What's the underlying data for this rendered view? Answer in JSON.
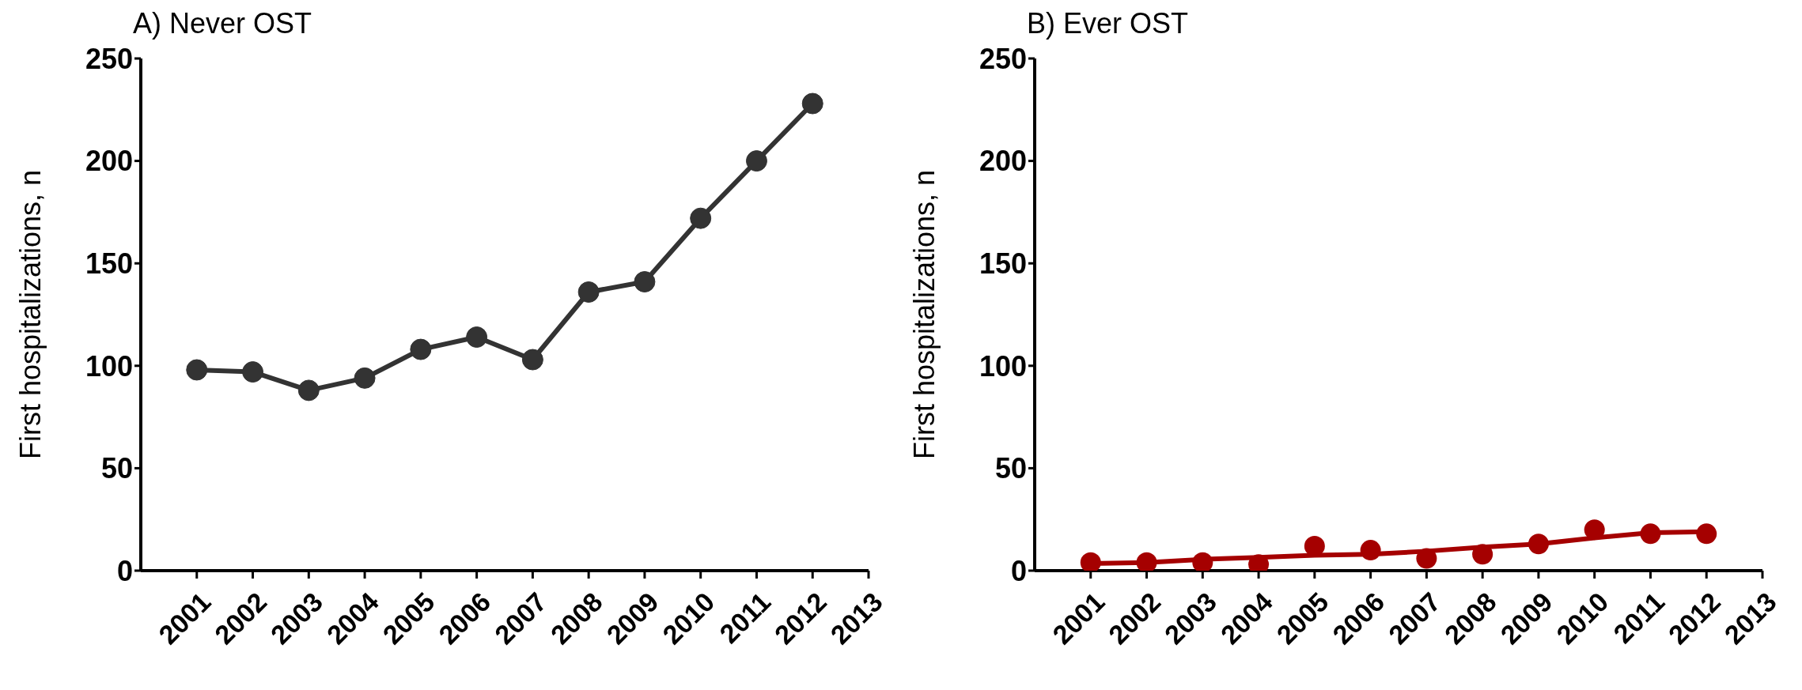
{
  "chart_data": [
    {
      "type": "line",
      "title": "A) Never OST",
      "ylabel": "First hospitalizations, n",
      "categories": [
        "2001",
        "2002",
        "2003",
        "2004",
        "2005",
        "2006",
        "2007",
        "2008",
        "2009",
        "2010",
        "2011",
        "2012",
        "2013"
      ],
      "ylim": [
        0,
        250
      ],
      "yticks": [
        0,
        50,
        100,
        150,
        200,
        250
      ],
      "grid": false,
      "legend": false,
      "marker": "circle",
      "line_style": "solid",
      "series": [
        {
          "type": "line",
          "color": "#333333",
          "values": [
            98,
            97,
            88,
            94,
            108,
            114,
            103,
            136,
            141,
            172,
            200,
            228,
            null
          ]
        }
      ]
    },
    {
      "type": "line",
      "title": "B) Ever OST",
      "ylabel": "First hospitalizations, n",
      "categories": [
        "2001",
        "2002",
        "2003",
        "2004",
        "2005",
        "2006",
        "2007",
        "2008",
        "2009",
        "2010",
        "2011",
        "2012",
        "2013"
      ],
      "ylim": [
        0,
        250
      ],
      "yticks": [
        0,
        50,
        100,
        150,
        200,
        250
      ],
      "grid": false,
      "legend": false,
      "line_style": "solid",
      "series": [
        {
          "type": "scatter",
          "color": "#a50000",
          "marker": "circle",
          "values": [
            4,
            4,
            4,
            3,
            12,
            10,
            6,
            8,
            13,
            20,
            18,
            18,
            null
          ]
        },
        {
          "type": "line",
          "color": "#a50000",
          "marker": "none",
          "values": [
            3.5,
            4,
            5.5,
            6.5,
            7.5,
            8,
            9.5,
            11.5,
            13,
            16,
            18.5,
            19,
            null
          ]
        }
      ]
    }
  ]
}
